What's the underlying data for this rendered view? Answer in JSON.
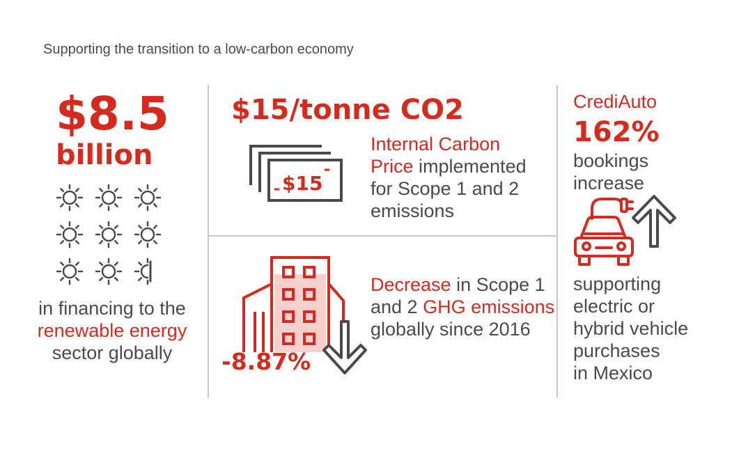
{
  "title": "Supporting the transition to a low-carbon economy",
  "col1": {
    "amount": "$8.5",
    "unit": "billion",
    "line1": "in financing to the",
    "line2": "renewable energy",
    "line3": "sector globally",
    "icon": "sun-icon",
    "suns_count": 8.5
  },
  "col2_top": {
    "headline": "$15/tonne CO2",
    "icon_label": "$15",
    "l1": "Internal Carbon",
    "l2_red": "Price",
    "l2_gray": " implemented",
    "l3": "for Scope 1 and 2",
    "l4": "emissions",
    "icon": "money-bills-icon"
  },
  "col2_bottom": {
    "value": "-8.87%",
    "l1_red": "Decrease",
    "l1_gray": " in Scope 1",
    "l2_gray": "and 2 ",
    "l2_red": "GHG emissions",
    "l3": "globally since 2016",
    "icon": "building-icon",
    "arrow_icon": "arrow-down-icon"
  },
  "col3": {
    "brand": "CrediAuto",
    "percent": "162%",
    "l1": "bookings",
    "l2": "increase",
    "b1": "supporting",
    "b2": "electric or",
    "b3": "hybrid vehicle",
    "b4": "purchases",
    "b5": "in Mexico",
    "icon": "electric-car-icon",
    "arrow_icon": "arrow-up-icon"
  },
  "colors": {
    "accent": "#d52b1e",
    "text": "#4a4a4a",
    "divider": "#c8c8c8"
  }
}
